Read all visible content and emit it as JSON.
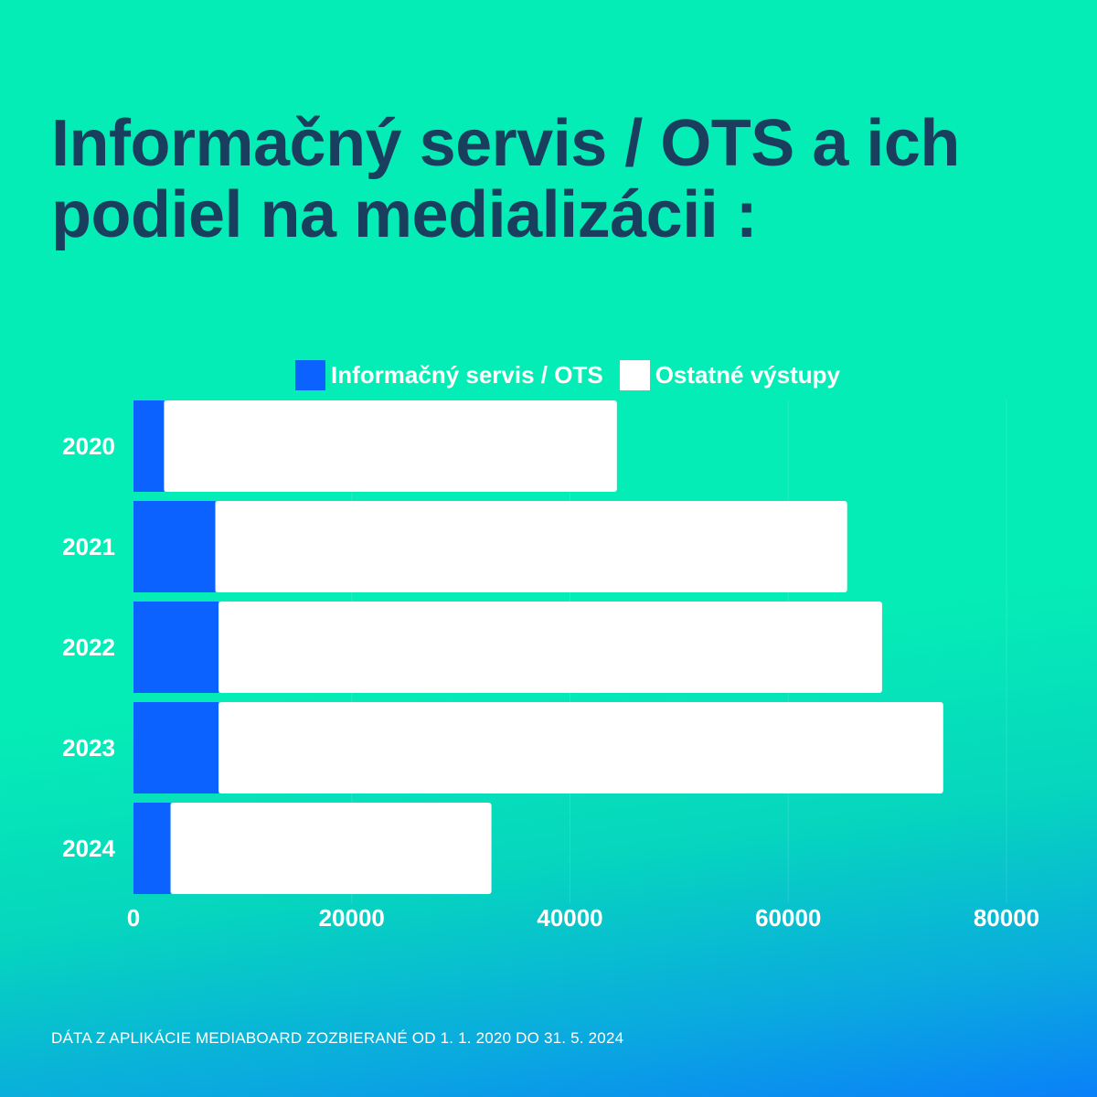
{
  "title": "Informačný servis / OTS a ich podiel na medializácii :",
  "footer": "DÁTA Z APLIKÁCIE MEDIABOARD ZOZBIERANÉ OD 1. 1. 2020 DO 31. 5. 2024",
  "chart_data": {
    "type": "bar",
    "orientation": "horizontal",
    "stacked": true,
    "categories": [
      "2020",
      "2021",
      "2022",
      "2023",
      "2024"
    ],
    "series": [
      {
        "name": "Informačný servis / OTS",
        "color": "#0B62FF",
        "values": [
          2800,
          7500,
          7800,
          7800,
          3400
        ]
      },
      {
        "name": "Ostatné výstupy",
        "color": "#FFFFFF",
        "values": [
          41500,
          57900,
          60800,
          66400,
          29400
        ]
      }
    ],
    "xlim": [
      0,
      80000
    ],
    "xticks": [
      "0",
      "20000",
      "40000",
      "60000",
      "80000"
    ],
    "grid": true,
    "legend": "top"
  }
}
